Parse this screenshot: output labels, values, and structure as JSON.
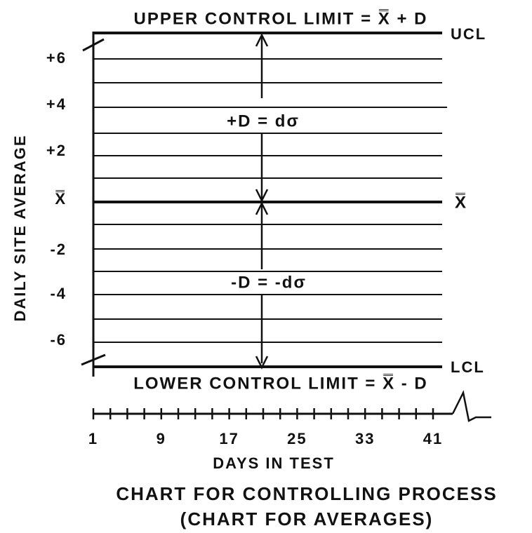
{
  "header": {
    "top_label": "UPPER CONTROL LIMIT = X̿ + D",
    "bottom_label": "LOWER CONTROL LIMIT = X̿ - D",
    "ucl": "UCL",
    "lcl": "LCL",
    "center_right": "X̿",
    "plus_d": "+D = dσ",
    "minus_d": "-D = -dσ"
  },
  "y_axis": {
    "title": "DAILY SITE AVERAGE",
    "labels": [
      "+6",
      "+4",
      "+2",
      "X̿",
      "-2",
      "-4",
      "-6"
    ]
  },
  "x_axis": {
    "title": "DAYS IN TEST",
    "labels": [
      "1",
      "9",
      "17",
      "25",
      "33",
      "41"
    ]
  },
  "caption": {
    "line1": "CHART FOR CONTROLLING PROCESS",
    "line2": "(CHART FOR AVERAGES)"
  }
}
